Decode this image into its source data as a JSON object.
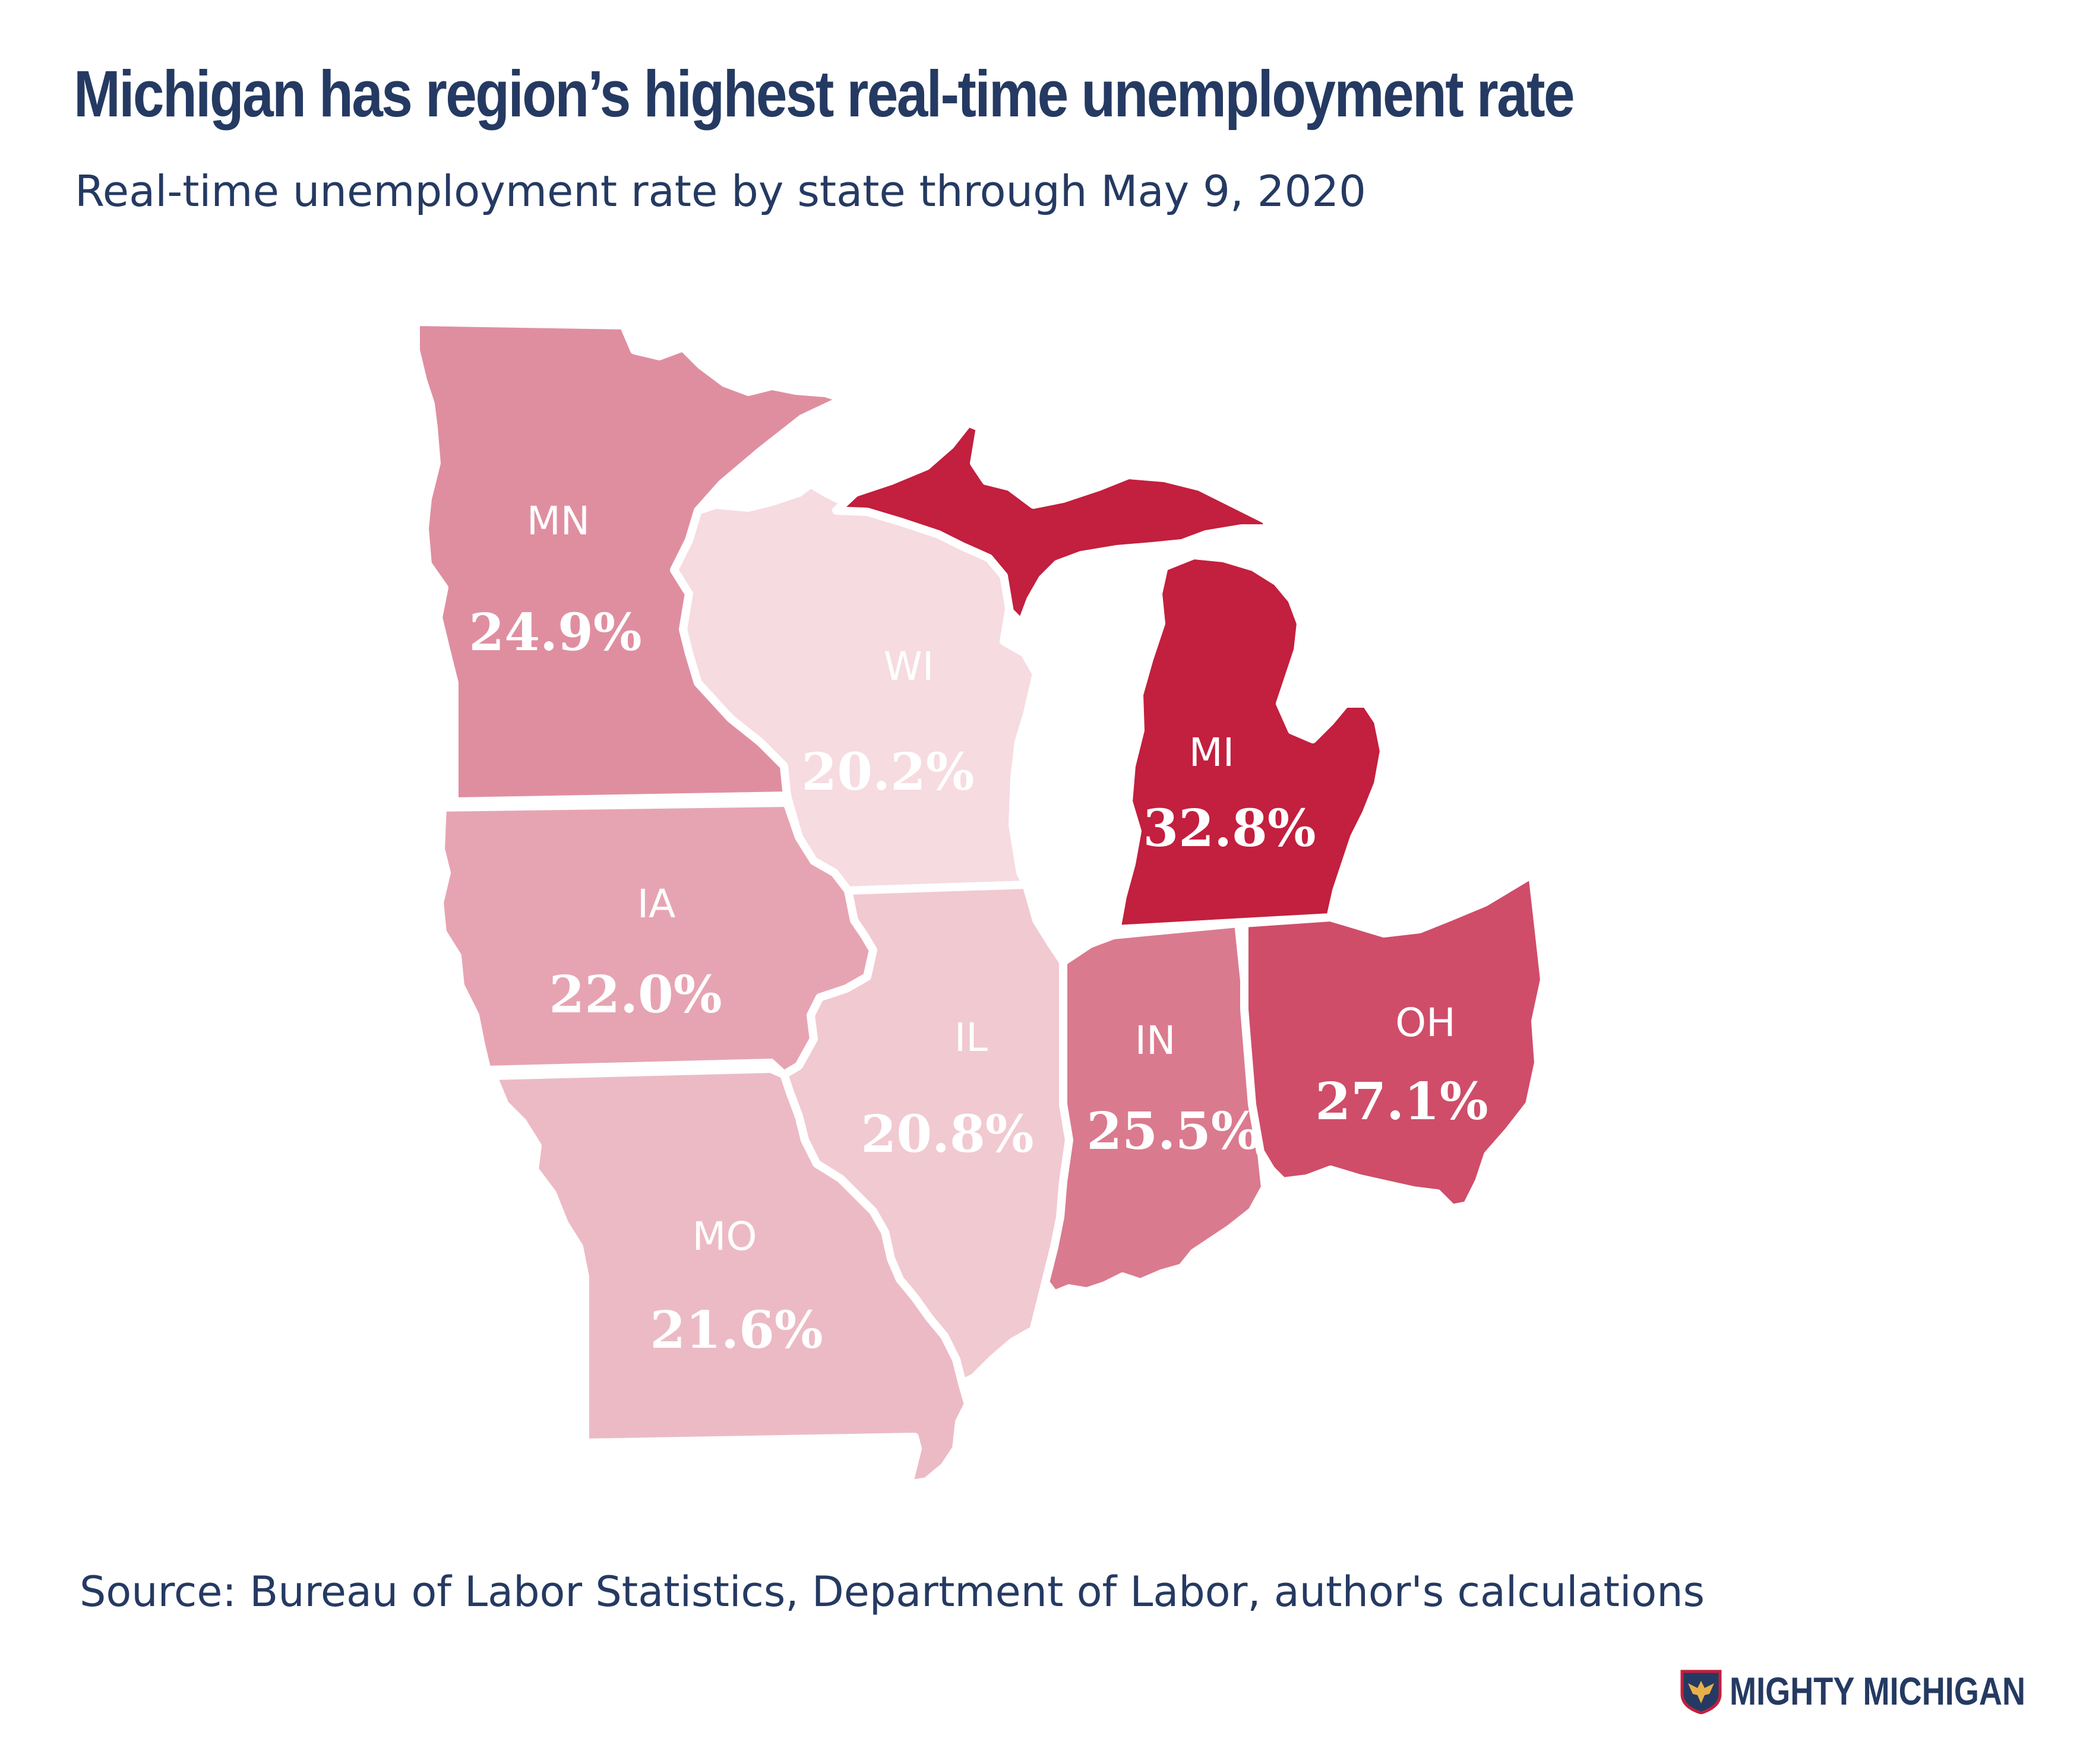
{
  "title": "Michigan has region’s highest real-time unemployment rate",
  "subtitle": "Real-time unemployment rate by state through May 9, 2020",
  "source": "Source: Bureau of Labor Statistics, Department of Labor, author's calculations",
  "brand": {
    "name": "MIGHTY MICHIGAN",
    "logo": "shield-eagle-icon"
  },
  "states": [
    {
      "abbr": "MN",
      "rate": "24.9%",
      "color": "#df8ea0"
    },
    {
      "abbr": "WI",
      "rate": "20.2%",
      "color": "#f6dbe0"
    },
    {
      "abbr": "MI",
      "rate": "32.8%",
      "color": "#c31f3e"
    },
    {
      "abbr": "IA",
      "rate": "22.0%",
      "color": "#e6a4b2"
    },
    {
      "abbr": "IL",
      "rate": "20.8%",
      "color": "#f1c9d1"
    },
    {
      "abbr": "IN",
      "rate": "25.5%",
      "color": "#da7a8e"
    },
    {
      "abbr": "OH",
      "rate": "27.1%",
      "color": "#cf4d69"
    },
    {
      "abbr": "MO",
      "rate": "21.6%",
      "color": "#ecbac5"
    }
  ]
}
